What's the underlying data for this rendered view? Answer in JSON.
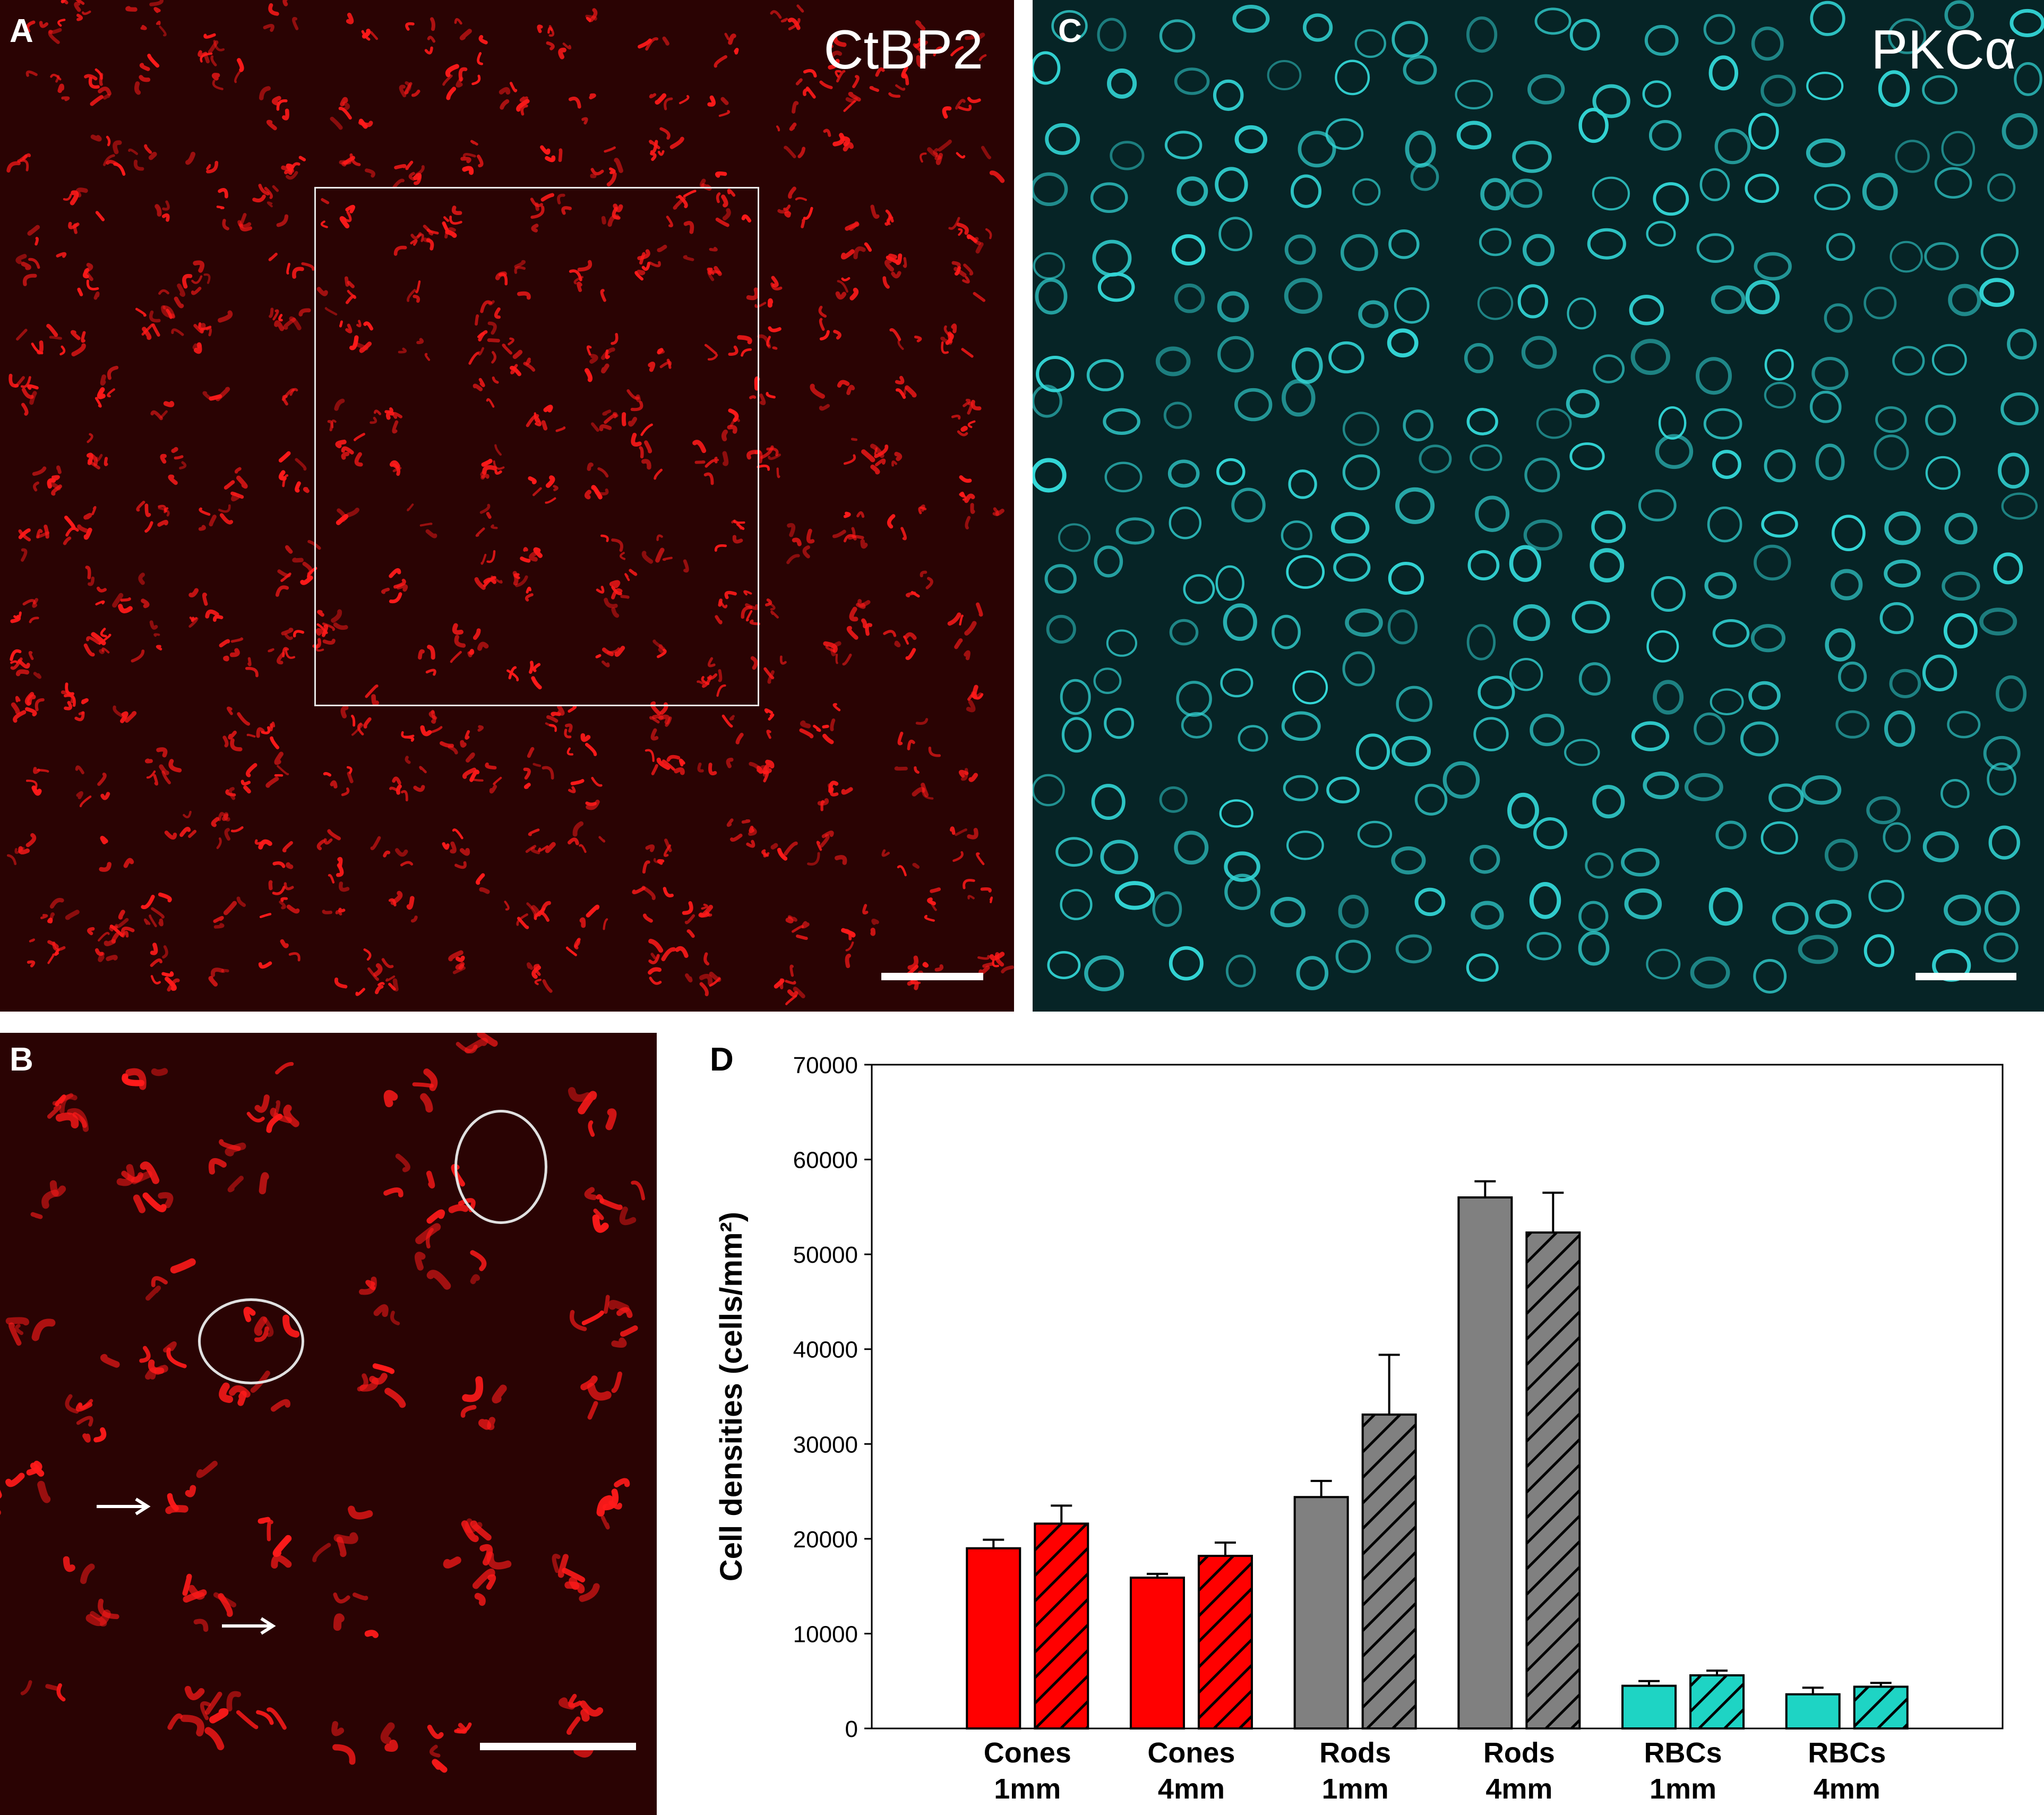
{
  "figure": {
    "panel_a": {
      "letter": "A",
      "stain": "CtBP2",
      "stain_color": "#ff1a1a",
      "background_color": "#2a0303",
      "shows_roi_rectangle": true,
      "shows_scale_bar": true
    },
    "panel_b": {
      "letter": "B",
      "stain_color": "#ff1a1a",
      "background_color": "#2a0303",
      "marked_pedicles": 2,
      "marked_spherules": 2,
      "shows_scale_bar": true
    },
    "panel_c": {
      "letter": "C",
      "stain": "PKCα",
      "stain_color": "#33d6d6",
      "background_color": "#062426",
      "shows_scale_bar": true
    },
    "panel_d": {
      "letter": "D"
    }
  },
  "chart_data": {
    "type": "bar",
    "title": "",
    "xlabel": "",
    "ylabel": "Cell densities (cells/mm²)",
    "ylim": [
      0,
      70000
    ],
    "yticks": [
      0,
      10000,
      20000,
      30000,
      40000,
      50000,
      60000,
      70000
    ],
    "ytick_labels": [
      "0",
      "10000",
      "20000",
      "30000",
      "40000",
      "50000",
      "60000",
      "70000"
    ],
    "grid": false,
    "legend": "none",
    "categories": [
      {
        "line1": "Cones",
        "line2": "1mm",
        "color": "#ff0000"
      },
      {
        "line1": "Cones",
        "line2": "4mm",
        "color": "#ff0000"
      },
      {
        "line1": "Rods",
        "line2": "1mm",
        "color": "#808080"
      },
      {
        "line1": "Rods",
        "line2": "4mm",
        "color": "#808080"
      },
      {
        "line1": "RBCs",
        "line2": "1mm",
        "color": "#1ed4c4"
      },
      {
        "line1": "RBCs",
        "line2": "4mm",
        "color": "#1ed4c4"
      }
    ],
    "series": [
      {
        "fill": "solid",
        "values": [
          19000,
          15900,
          24400,
          56000,
          4500,
          3600
        ],
        "errors": [
          900,
          400,
          1700,
          1700,
          500,
          700
        ]
      },
      {
        "fill": "hatched",
        "values": [
          21600,
          18200,
          33100,
          52300,
          5600,
          4400
        ],
        "errors": [
          1900,
          1400,
          6300,
          4200,
          500,
          400
        ]
      }
    ]
  }
}
